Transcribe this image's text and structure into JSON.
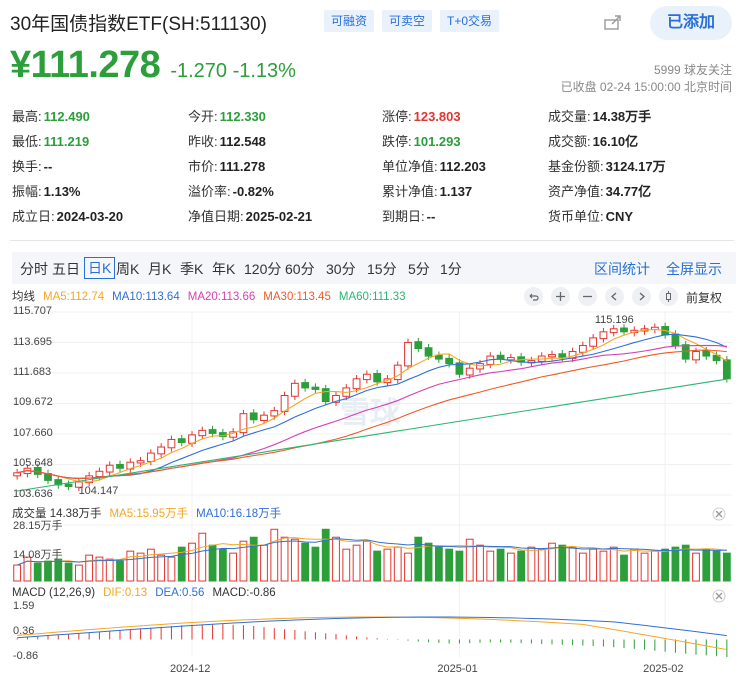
{
  "header": {
    "title": "30年国债指数ETF(SH:511130)",
    "tags": [
      "可融资",
      "可卖空",
      "T+0交易"
    ],
    "add_label": "已添加",
    "price": "¥111.278",
    "change": "-1.270 -1.13%",
    "followers": "5999 球友关注",
    "status": "已收盘 02-24 15:00:00 北京时间"
  },
  "stats": [
    {
      "k": "最高:",
      "v": "112.490",
      "c": "down"
    },
    {
      "k": "今开:",
      "v": "112.330",
      "c": "down"
    },
    {
      "k": "涨停:",
      "v": "123.803",
      "c": "up"
    },
    {
      "k": "成交量:",
      "v": "14.38万手",
      "c": ""
    },
    {
      "k": "最低:",
      "v": "111.219",
      "c": "down"
    },
    {
      "k": "昨收:",
      "v": "112.548",
      "c": ""
    },
    {
      "k": "跌停:",
      "v": "101.293",
      "c": "down"
    },
    {
      "k": "成交额:",
      "v": "16.10亿",
      "c": ""
    },
    {
      "k": "换手:",
      "v": "--",
      "c": ""
    },
    {
      "k": "市价:",
      "v": "111.278",
      "c": ""
    },
    {
      "k": "单位净值:",
      "v": "112.203",
      "c": ""
    },
    {
      "k": "基金份额:",
      "v": "3124.17万",
      "c": ""
    },
    {
      "k": "振幅:",
      "v": "1.13%",
      "c": ""
    },
    {
      "k": "溢价率:",
      "v": "-0.82%",
      "c": ""
    },
    {
      "k": "累计净值:",
      "v": "1.137",
      "c": ""
    },
    {
      "k": "资产净值:",
      "v": "34.77亿",
      "c": ""
    },
    {
      "k": "成立日:",
      "v": "2024-03-20",
      "c": ""
    },
    {
      "k": "净值日期:",
      "v": "2025-02-21",
      "c": ""
    },
    {
      "k": "到期日:",
      "v": "--",
      "c": ""
    },
    {
      "k": "货币单位:",
      "v": "CNY",
      "c": ""
    }
  ],
  "tabs": [
    "分时",
    "五日",
    "日K",
    "周K",
    "月K",
    "季K",
    "年K",
    "120分",
    "60分",
    "30分",
    "15分",
    "5分",
    "1分"
  ],
  "active_tab": "日K",
  "tab_links": [
    "区间统计",
    "全屏显示"
  ],
  "chart_legend": {
    "main": [
      {
        "t": "均线",
        "color": "#333333"
      },
      {
        "t": "MA5:112.74",
        "color": "#f5a623"
      },
      {
        "t": "MA10:113.64",
        "color": "#2f6fd6"
      },
      {
        "t": "MA20:113.66",
        "color": "#d63fb4"
      },
      {
        "t": "MA30:113.45",
        "color": "#f05a28"
      },
      {
        "t": "MA60:111.33",
        "color": "#2bb673"
      }
    ],
    "volume": [
      {
        "t": "成交量 14.38万手",
        "color": "#333333"
      },
      {
        "t": "MA5:15.95万手",
        "color": "#f5a623"
      },
      {
        "t": "MA10:16.18万手",
        "color": "#2f6fd6"
      }
    ],
    "macd": [
      {
        "t": "MACD (12,26,9)",
        "color": "#333333"
      },
      {
        "t": "DIF:0.13",
        "color": "#f5a623"
      },
      {
        "t": "DEA:0.56",
        "color": "#2f6fd6"
      },
      {
        "t": "MACD:-0.86",
        "color": "#333333"
      }
    ],
    "fq": "前复权"
  },
  "colors": {
    "up": "#e3342f",
    "down": "#2c9e3a",
    "accent": "#2a6fd6"
  },
  "chart_data": {
    "type": "candlestick",
    "y_ticks": [
      "115.707",
      "113.695",
      "111.683",
      "109.672",
      "107.660",
      "105.648",
      "103.636"
    ],
    "ylim": [
      103.636,
      115.707
    ],
    "max_label": "115.196",
    "min_label": "104.147",
    "x_ticks": [
      "2024-12",
      "2025-01",
      "2025-02"
    ],
    "closes": [
      105.1,
      105.4,
      105.0,
      104.6,
      104.3,
      104.2,
      104.5,
      104.9,
      105.2,
      105.6,
      105.4,
      105.8,
      105.9,
      106.4,
      106.8,
      107.3,
      107.1,
      107.6,
      107.9,
      107.7,
      107.5,
      107.8,
      109.0,
      108.6,
      108.9,
      109.2,
      110.2,
      111.0,
      110.7,
      110.6,
      109.8,
      110.2,
      110.7,
      111.3,
      111.6,
      111.1,
      111.3,
      112.2,
      113.7,
      113.3,
      112.8,
      112.6,
      112.3,
      111.6,
      112.0,
      112.3,
      112.8,
      112.6,
      112.7,
      112.4,
      112.5,
      112.8,
      112.9,
      112.7,
      113.1,
      113.5,
      114.0,
      114.4,
      114.6,
      114.4,
      114.5,
      114.6,
      114.7,
      114.2,
      113.5,
      112.6,
      113.1,
      112.8,
      112.5,
      111.3
    ],
    "volume_ticks": [
      "28.15万手",
      "14.08万手"
    ],
    "volumes": [
      8,
      12,
      9,
      10,
      11,
      9,
      8,
      13,
      12,
      11,
      10,
      15,
      14,
      16,
      13,
      12,
      17,
      19,
      24,
      18,
      16,
      14,
      20,
      22,
      18,
      26,
      22,
      21,
      19,
      17,
      26,
      22,
      16,
      18,
      20,
      15,
      16,
      17,
      14,
      22,
      19,
      17,
      16,
      15,
      21,
      18,
      15,
      16,
      14,
      15,
      17,
      16,
      19,
      18,
      17,
      14,
      16,
      15,
      17,
      13,
      16,
      14,
      15,
      16,
      17,
      18,
      14,
      16,
      15,
      14
    ],
    "macd_ticks": [
      "1.59",
      "0.36",
      "-0.86"
    ],
    "macd": [
      0.05,
      0.1,
      0.14,
      0.18,
      0.22,
      0.26,
      0.3,
      0.34,
      0.38,
      0.42,
      0.46,
      0.5,
      0.54,
      0.58,
      0.62,
      0.66,
      0.7,
      0.72,
      0.74,
      0.76,
      0.75,
      0.72,
      0.7,
      0.66,
      0.6,
      0.55,
      0.5,
      0.46,
      0.4,
      0.35,
      0.3,
      0.26,
      0.2,
      0.15,
      0.1,
      0.06,
      0.02,
      -0.02,
      -0.06,
      -0.1,
      -0.14,
      -0.17,
      -0.2,
      -0.2,
      -0.18,
      -0.16,
      -0.14,
      -0.15,
      -0.16,
      -0.18,
      -0.2,
      -0.22,
      -0.24,
      -0.26,
      -0.28,
      -0.3,
      -0.32,
      -0.35,
      -0.38,
      -0.42,
      -0.46,
      -0.5,
      -0.55,
      -0.6,
      -0.65,
      -0.7,
      -0.75,
      -0.78,
      -0.82,
      -0.86
    ],
    "watermark": "雪球"
  }
}
